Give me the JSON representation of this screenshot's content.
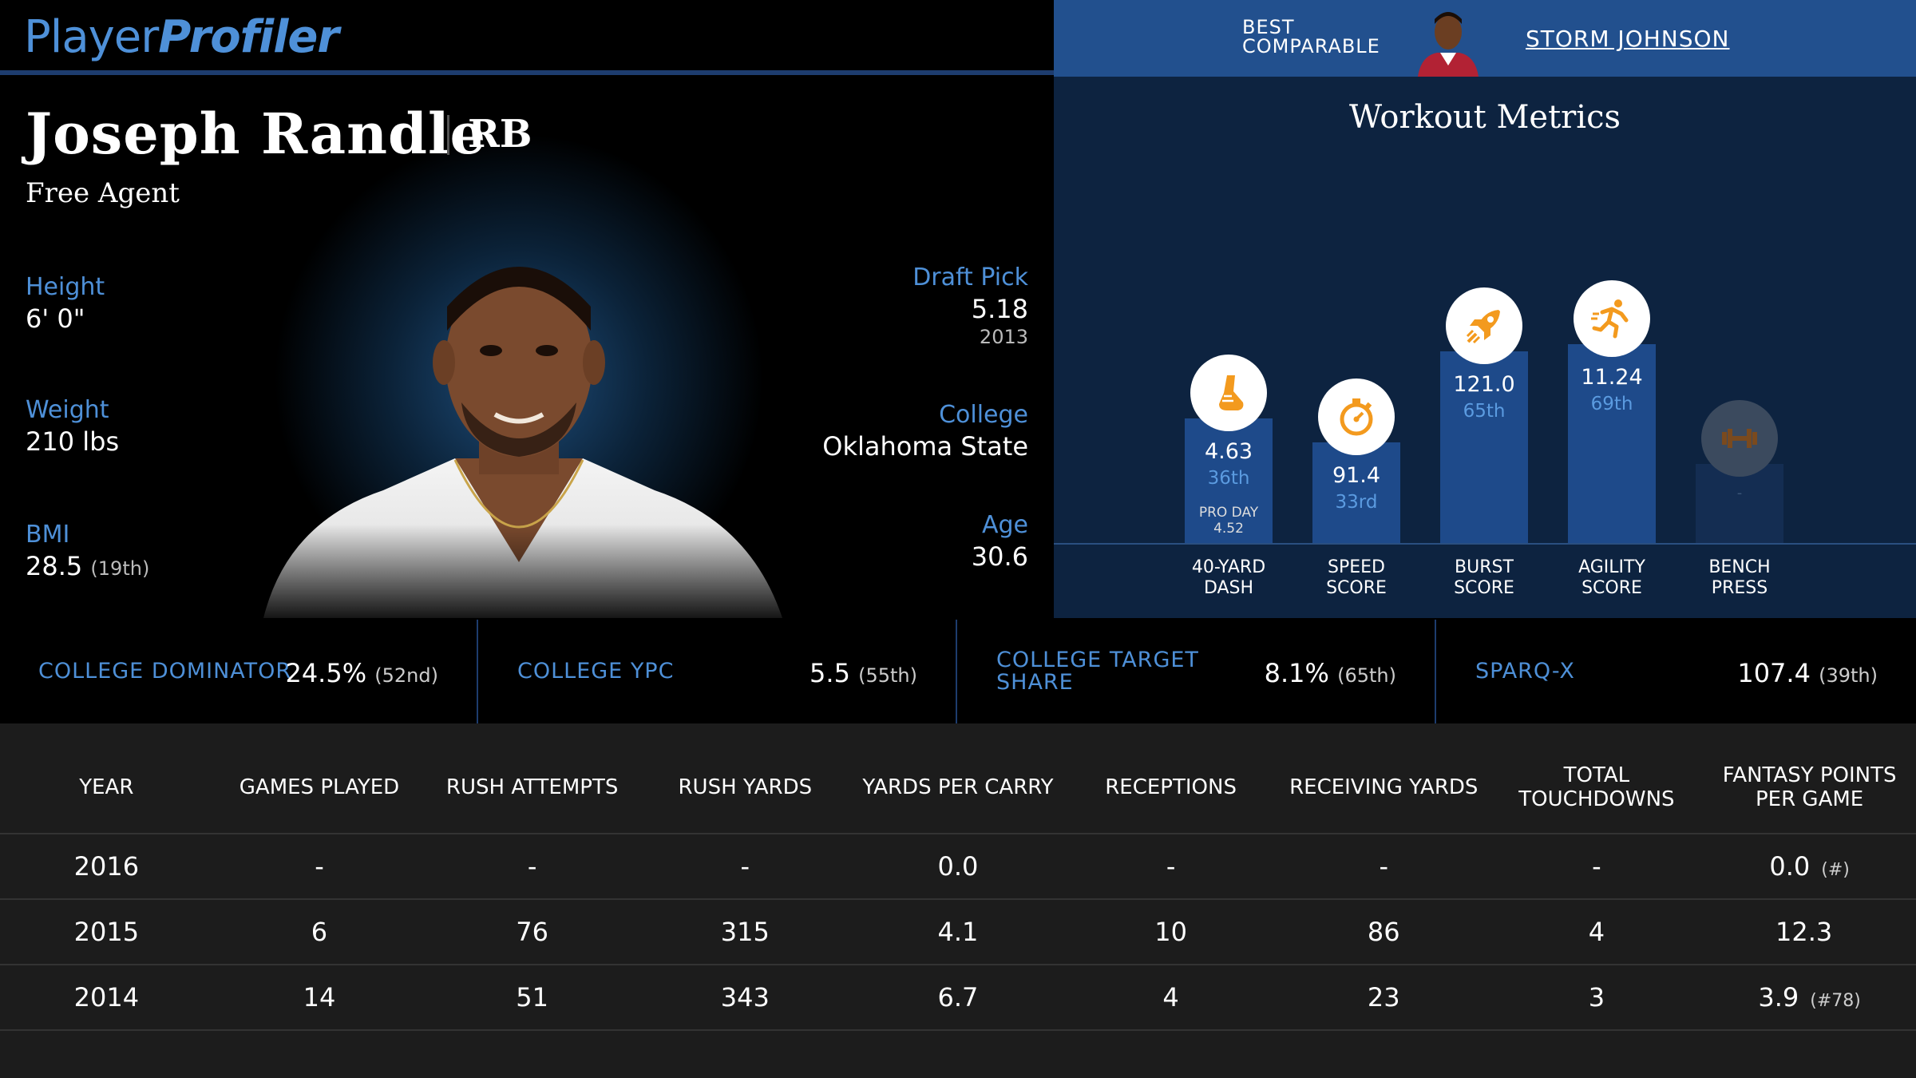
{
  "brand": {
    "part1": "Player",
    "part2": "Profiler"
  },
  "best_comparable": {
    "label_line1": "BEST",
    "label_line2": "COMPARABLE",
    "name": "STORM JOHNSON"
  },
  "player": {
    "name": "Joseph Randle",
    "position": "RB",
    "team": "Free Agent",
    "height_label": "Height",
    "height": "6' 0\"",
    "weight_label": "Weight",
    "weight": "210 lbs",
    "bmi_label": "BMI",
    "bmi": "28.5",
    "bmi_rank": "(19th)",
    "draft_label": "Draft Pick",
    "draft_pick": "5.18",
    "draft_year": "2013",
    "college_label": "College",
    "college": "Oklahoma State",
    "age_label": "Age",
    "age": "30.6"
  },
  "workout": {
    "title": "Workout Metrics",
    "items": [
      {
        "value": "4.63",
        "pct": "36th",
        "extra1": "PRO DAY",
        "extra2": "4.52",
        "label1": "40-YARD",
        "label2": "DASH",
        "icon": "running-shoe-icon",
        "level": 0.52
      },
      {
        "value": "91.4",
        "pct": "33rd",
        "extra1": "",
        "extra2": "",
        "label1": "SPEED",
        "label2": "SCORE",
        "icon": "stopwatch-icon",
        "level": 0.42
      },
      {
        "value": "121.0",
        "pct": "65th",
        "extra1": "",
        "extra2": "",
        "label1": "BURST",
        "label2": "SCORE",
        "icon": "rocket-icon",
        "level": 0.8
      },
      {
        "value": "11.24",
        "pct": "69th",
        "extra1": "",
        "extra2": "",
        "label1": "AGILITY",
        "label2": "SCORE",
        "icon": "running-man-icon",
        "level": 0.83
      },
      {
        "value": "-",
        "pct": "",
        "extra1": "",
        "extra2": "",
        "label1": "BENCH",
        "label2": "PRESS",
        "icon": "dumbbell-icon",
        "level": 0.33
      }
    ]
  },
  "college_metrics": [
    {
      "label1": "COLLEGE DOMINATOR",
      "label2": "",
      "value": "24.5%",
      "rank": "(52nd)"
    },
    {
      "label1": "COLLEGE YPC",
      "label2": "",
      "value": "5.5",
      "rank": "(55th)"
    },
    {
      "label1": "COLLEGE TARGET",
      "label2": "SHARE",
      "value": "8.1%",
      "rank": "(65th)"
    },
    {
      "label1": "SPARQ-X",
      "label2": "",
      "value": "107.4",
      "rank": "(39th)"
    }
  ],
  "stats_table": {
    "headers": [
      "YEAR",
      "GAMES PLAYED",
      "RUSH ATTEMPTS",
      "RUSH YARDS",
      "YARDS PER CARRY",
      "RECEPTIONS",
      "RECEIVING YARDS",
      "TOTAL TOUCHDOWNS",
      "FANTASY POINTS PER GAME"
    ],
    "rows": [
      [
        "2016",
        "-",
        "-",
        "-",
        "0.0",
        "-",
        "-",
        "-",
        "0.0",
        "(#)"
      ],
      [
        "2015",
        "6",
        "76",
        "315",
        "4.1",
        "10",
        "86",
        "4",
        "12.3",
        ""
      ],
      [
        "2014",
        "14",
        "51",
        "343",
        "6.7",
        "4",
        "23",
        "3",
        "3.9",
        "(#78)"
      ]
    ]
  },
  "colors": {
    "accent": "#4e90d8",
    "header_bar": "#22508e",
    "bar": "#1e4a8a",
    "icon_orange": "#f39a1e"
  }
}
